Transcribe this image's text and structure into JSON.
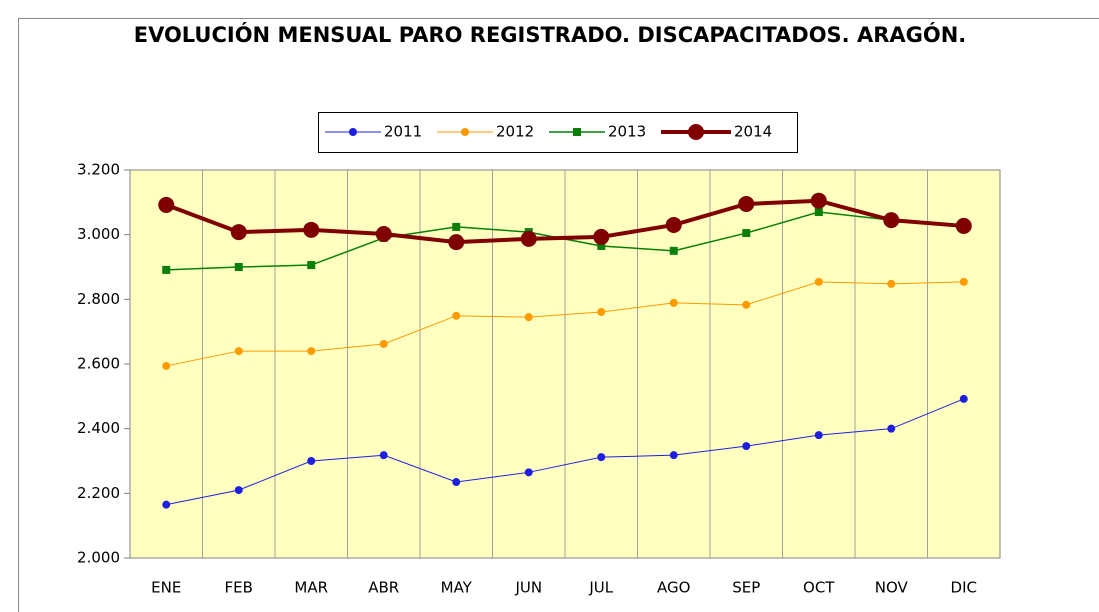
{
  "chart_data": {
    "type": "line",
    "title": "EVOLUCIÓN MENSUAL PARO REGISTRADO. DISCAPACITADOS. ARAGÓN.",
    "categories": [
      "ENE",
      "FEB",
      "MAR",
      "ABR",
      "MAY",
      "JUN",
      "JUL",
      "AGO",
      "SEP",
      "OCT",
      "NOV",
      "DIC"
    ],
    "series": [
      {
        "name": "2011",
        "color": "#1f1fe0",
        "marker": "circle",
        "line_width": 1,
        "values": [
          2165,
          2210,
          2300,
          2318,
          2235,
          2265,
          2312,
          2318,
          2346,
          2380,
          2400,
          2492
        ]
      },
      {
        "name": "2012",
        "color": "#ff9a00",
        "marker": "circle",
        "line_width": 1,
        "values": [
          2594,
          2640,
          2640,
          2662,
          2749,
          2745,
          2761,
          2789,
          2783,
          2854,
          2848,
          2854
        ]
      },
      {
        "name": "2013",
        "color": "#0a7f0a",
        "marker": "square",
        "line_width": 1.5,
        "values": [
          2891,
          2900,
          2906,
          2990,
          3024,
          3008,
          2965,
          2950,
          3005,
          3070,
          3045,
          3025
        ]
      },
      {
        "name": "2014",
        "color": "#800000",
        "marker": "circle",
        "line_width": 4,
        "values": [
          3092,
          3008,
          3015,
          3002,
          2977,
          2987,
          2993,
          3030,
          3095,
          3105,
          3045,
          3027
        ]
      }
    ],
    "ylim": [
      2000,
      3200
    ],
    "yticks": [
      {
        "value": 2000,
        "label": "2.000"
      },
      {
        "value": 2200,
        "label": "2.200"
      },
      {
        "value": 2400,
        "label": "2.400"
      },
      {
        "value": 2600,
        "label": "2.600"
      },
      {
        "value": 2800,
        "label": "2.800"
      },
      {
        "value": 3000,
        "label": "3.000"
      },
      {
        "value": 3200,
        "label": "3.200"
      }
    ],
    "legend": "top",
    "background": "#ffffc0"
  }
}
